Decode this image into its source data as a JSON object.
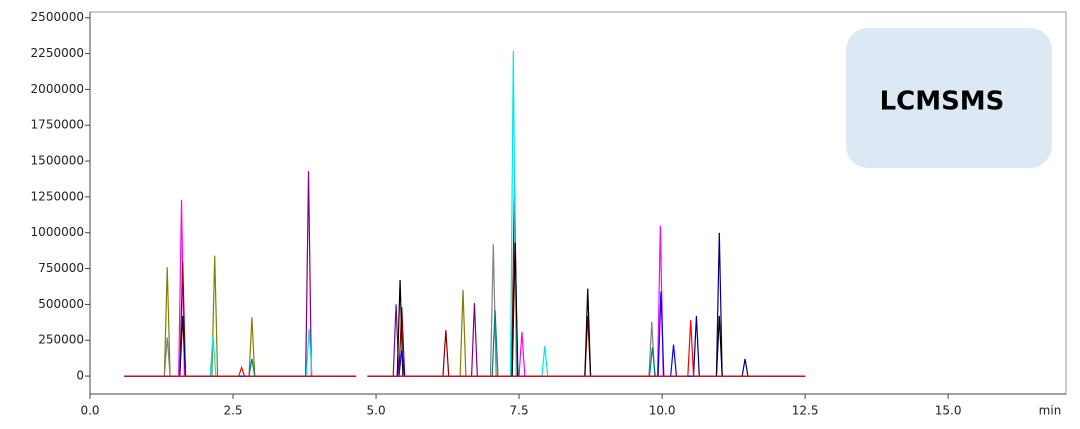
{
  "chart_data": {
    "type": "line",
    "annotation": "LCMSMS",
    "x_label": "min",
    "xlim": [
      0,
      17.06
    ],
    "ylim": [
      -125000,
      2540000
    ],
    "xticks": [
      {
        "value": 0,
        "label": "0.0"
      },
      {
        "value": 2.5,
        "label": "2.5"
      },
      {
        "value": 5,
        "label": "5.0"
      },
      {
        "value": 7.5,
        "label": "7.5"
      },
      {
        "value": 10,
        "label": "10.0"
      },
      {
        "value": 12.5,
        "label": "12.5"
      },
      {
        "value": 15,
        "label": "15.0"
      }
    ],
    "yticks": [
      0,
      250000,
      500000,
      750000,
      1000000,
      1250000,
      1500000,
      1750000,
      2000000,
      2250000,
      2500000
    ],
    "series": [
      {
        "color": "#808000",
        "x": [
          0.6,
          1.3,
          1.35,
          1.4,
          2.13,
          2.18,
          2.23,
          2.78,
          2.83,
          2.88,
          4.65,
          4.75,
          4.85,
          6.47,
          6.52,
          6.57,
          12.5
        ],
        "values": [
          0,
          0,
          760000,
          0,
          0,
          840000,
          0,
          0,
          410000,
          0,
          0,
          null,
          0,
          0,
          600000,
          0,
          0
        ]
      },
      {
        "color": "#ff00ff",
        "x": [
          0.6,
          1.55,
          1.6,
          1.65,
          4.65,
          4.75,
          4.85,
          7.5,
          7.55,
          7.6,
          9.92,
          9.97,
          10.02,
          12.5
        ],
        "values": [
          0,
          0,
          1230000,
          0,
          0,
          null,
          0,
          0,
          310000,
          0,
          0,
          1050000,
          0,
          0
        ]
      },
      {
        "color": "#8b0000",
        "x": [
          0.6,
          1.57,
          1.62,
          1.67,
          4.65,
          4.75,
          4.85,
          5.4,
          5.45,
          5.5,
          6.17,
          6.22,
          6.27,
          7.37,
          7.42,
          7.47,
          8.65,
          8.7,
          8.75,
          12.5
        ],
        "values": [
          0,
          0,
          800000,
          0,
          0,
          null,
          0,
          0,
          480000,
          0,
          0,
          320000,
          0,
          0,
          1340000,
          0,
          0,
          420000,
          0,
          0
        ]
      },
      {
        "color": "#800080",
        "x": [
          0.6,
          3.77,
          3.82,
          3.87,
          4.65,
          4.75,
          4.85,
          5.3,
          5.35,
          5.4,
          6.67,
          6.72,
          6.77,
          12.5
        ],
        "values": [
          0,
          0,
          1430000,
          0,
          0,
          null,
          0,
          0,
          500000,
          0,
          0,
          510000,
          0,
          0
        ]
      },
      {
        "color": "#000080",
        "x": [
          0.6,
          1.57,
          1.62,
          1.67,
          4.65,
          4.75,
          4.85,
          10.55,
          10.6,
          10.65,
          10.95,
          11.0,
          11.05,
          11.4,
          11.45,
          11.5,
          12.5
        ],
        "values": [
          0,
          0,
          420000,
          0,
          0,
          null,
          0,
          0,
          420000,
          0,
          0,
          1000000,
          0,
          0,
          120000,
          0,
          0
        ]
      },
      {
        "color": "#00e5ee",
        "x": [
          0.6,
          2.1,
          2.15,
          2.2,
          3.78,
          3.83,
          3.88,
          4.65,
          4.75,
          4.85,
          7.35,
          7.4,
          7.45,
          7.9,
          7.95,
          8.0,
          12.5
        ],
        "values": [
          0,
          0,
          280000,
          0,
          0,
          330000,
          0,
          0,
          null,
          0,
          0,
          2270000,
          0,
          0,
          210000,
          0,
          0
        ]
      },
      {
        "color": "#808080",
        "x": [
          0.6,
          1.3,
          1.35,
          1.4,
          4.65,
          4.75,
          4.85,
          7.0,
          7.05,
          7.1,
          9.77,
          9.82,
          9.87,
          12.5
        ],
        "values": [
          0,
          0,
          270000,
          0,
          0,
          null,
          0,
          0,
          920000,
          0,
          0,
          380000,
          0,
          0
        ]
      },
      {
        "color": "#000000",
        "x": [
          0.6,
          4.65,
          4.75,
          4.85,
          5.37,
          5.42,
          5.47,
          7.38,
          7.43,
          7.48,
          8.65,
          8.7,
          8.75,
          10.95,
          11.0,
          11.05,
          12.5
        ],
        "values": [
          0,
          0,
          null,
          0,
          0,
          670000,
          0,
          0,
          930000,
          0,
          0,
          610000,
          0,
          0,
          420000,
          0,
          0
        ]
      },
      {
        "color": "#008080",
        "x": [
          0.6,
          2.78,
          2.83,
          2.88,
          4.65,
          4.75,
          4.85,
          7.03,
          7.08,
          7.13,
          9.78,
          9.83,
          9.88,
          12.5
        ],
        "values": [
          0,
          0,
          120000,
          0,
          0,
          null,
          0,
          0,
          460000,
          0,
          0,
          200000,
          0,
          0
        ]
      },
      {
        "color": "#0000ff",
        "x": [
          0.6,
          4.65,
          4.75,
          4.85,
          5.4,
          5.45,
          5.5,
          9.93,
          9.98,
          10.03,
          10.15,
          10.2,
          10.25,
          12.5
        ],
        "values": [
          0,
          0,
          null,
          0,
          0,
          180000,
          0,
          0,
          590000,
          0,
          0,
          220000,
          0,
          0
        ]
      },
      {
        "color": "#ff0000",
        "x": [
          0.6,
          2.6,
          2.65,
          2.7,
          4.65,
          4.75,
          4.85,
          10.45,
          10.5,
          10.55,
          12.5
        ],
        "values": [
          0,
          0,
          60000,
          0,
          0,
          null,
          0,
          0,
          390000,
          0,
          0
        ]
      }
    ]
  }
}
